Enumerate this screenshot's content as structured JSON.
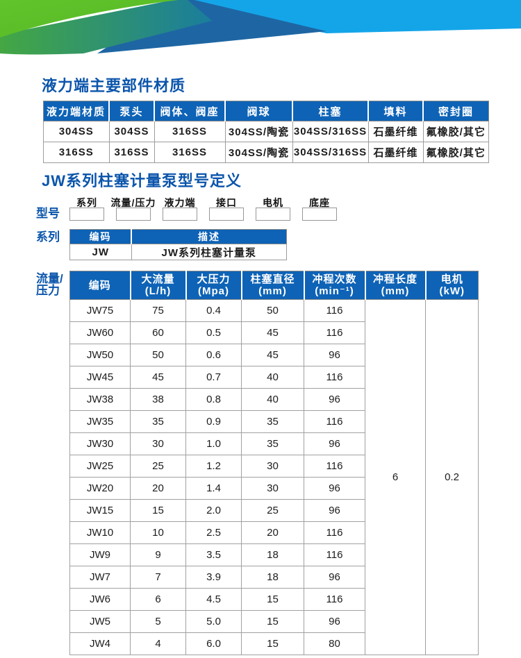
{
  "banner": {
    "colors": {
      "green": "#5cbe28",
      "teal_gradient_start": "#44a743",
      "teal_gradient_end": "#1a7d9d",
      "dark_blue": "#1e66a3",
      "light_blue": "#14a5e9"
    }
  },
  "accent_blue": "#0e63b6",
  "title_blue": "#0b55ab",
  "section_materials": {
    "title": "液力端主要部件材质",
    "table": {
      "headers": [
        "液力端材质",
        "泵头",
        "阀体、阀座",
        "阀球",
        "柱塞",
        "填料",
        "密封圈"
      ],
      "rows": [
        [
          "304SS",
          "304SS",
          "316SS",
          "304SS/陶瓷",
          "304SS/316SS",
          "石墨纤维",
          "氟橡胶/其它"
        ],
        [
          "316SS",
          "316SS",
          "316SS",
          "304SS/陶瓷",
          "304SS/316SS",
          "石墨纤维",
          "氟橡胶/其它"
        ]
      ]
    }
  },
  "section_model": {
    "title": "JW系列柱塞计量泵型号定义",
    "model_row_label": "型号",
    "model_fields": [
      "系列",
      "流量/压力",
      "液力端",
      "接口",
      "电机",
      "底座"
    ],
    "series_row_label": "系列",
    "series_table": {
      "headers": [
        "编码",
        "描述"
      ],
      "rows": [
        [
          "JW",
          "JW系列柱塞计量泵"
        ]
      ]
    },
    "flow_row_label": "流量/压力",
    "spec_table": {
      "headers": [
        {
          "title": "编码",
          "unit": ""
        },
        {
          "title": "大流量",
          "unit": "(L/h)"
        },
        {
          "title": "大压力",
          "unit": "(Mpa)"
        },
        {
          "title": "柱塞直径",
          "unit": "(mm)"
        },
        {
          "title": "冲程次数",
          "unit": "(min⁻¹)"
        },
        {
          "title": "冲程长度",
          "unit": "(mm)"
        },
        {
          "title": "电机",
          "unit": "(kW)"
        }
      ],
      "rows": [
        [
          "JW75",
          "75",
          "0.4",
          "50",
          "116"
        ],
        [
          "JW60",
          "60",
          "0.5",
          "45",
          "116"
        ],
        [
          "JW50",
          "50",
          "0.6",
          "45",
          "96"
        ],
        [
          "JW45",
          "45",
          "0.7",
          "40",
          "116"
        ],
        [
          "JW38",
          "38",
          "0.8",
          "40",
          "96"
        ],
        [
          "JW35",
          "35",
          "0.9",
          "35",
          "116"
        ],
        [
          "JW30",
          "30",
          "1.0",
          "35",
          "96"
        ],
        [
          "JW25",
          "25",
          "1.2",
          "30",
          "116"
        ],
        [
          "JW20",
          "20",
          "1.4",
          "30",
          "96"
        ],
        [
          "JW15",
          "15",
          "2.0",
          "25",
          "96"
        ],
        [
          "JW10",
          "10",
          "2.5",
          "20",
          "116"
        ],
        [
          "JW9",
          "9",
          "3.5",
          "18",
          "116"
        ],
        [
          "JW7",
          "7",
          "3.9",
          "18",
          "96"
        ],
        [
          "JW6",
          "6",
          "4.5",
          "15",
          "116"
        ],
        [
          "JW5",
          "5",
          "5.0",
          "15",
          "96"
        ],
        [
          "JW4",
          "4",
          "6.0",
          "15",
          "80"
        ]
      ],
      "stroke_length_value": "6",
      "motor_power_value": "0.2"
    }
  }
}
